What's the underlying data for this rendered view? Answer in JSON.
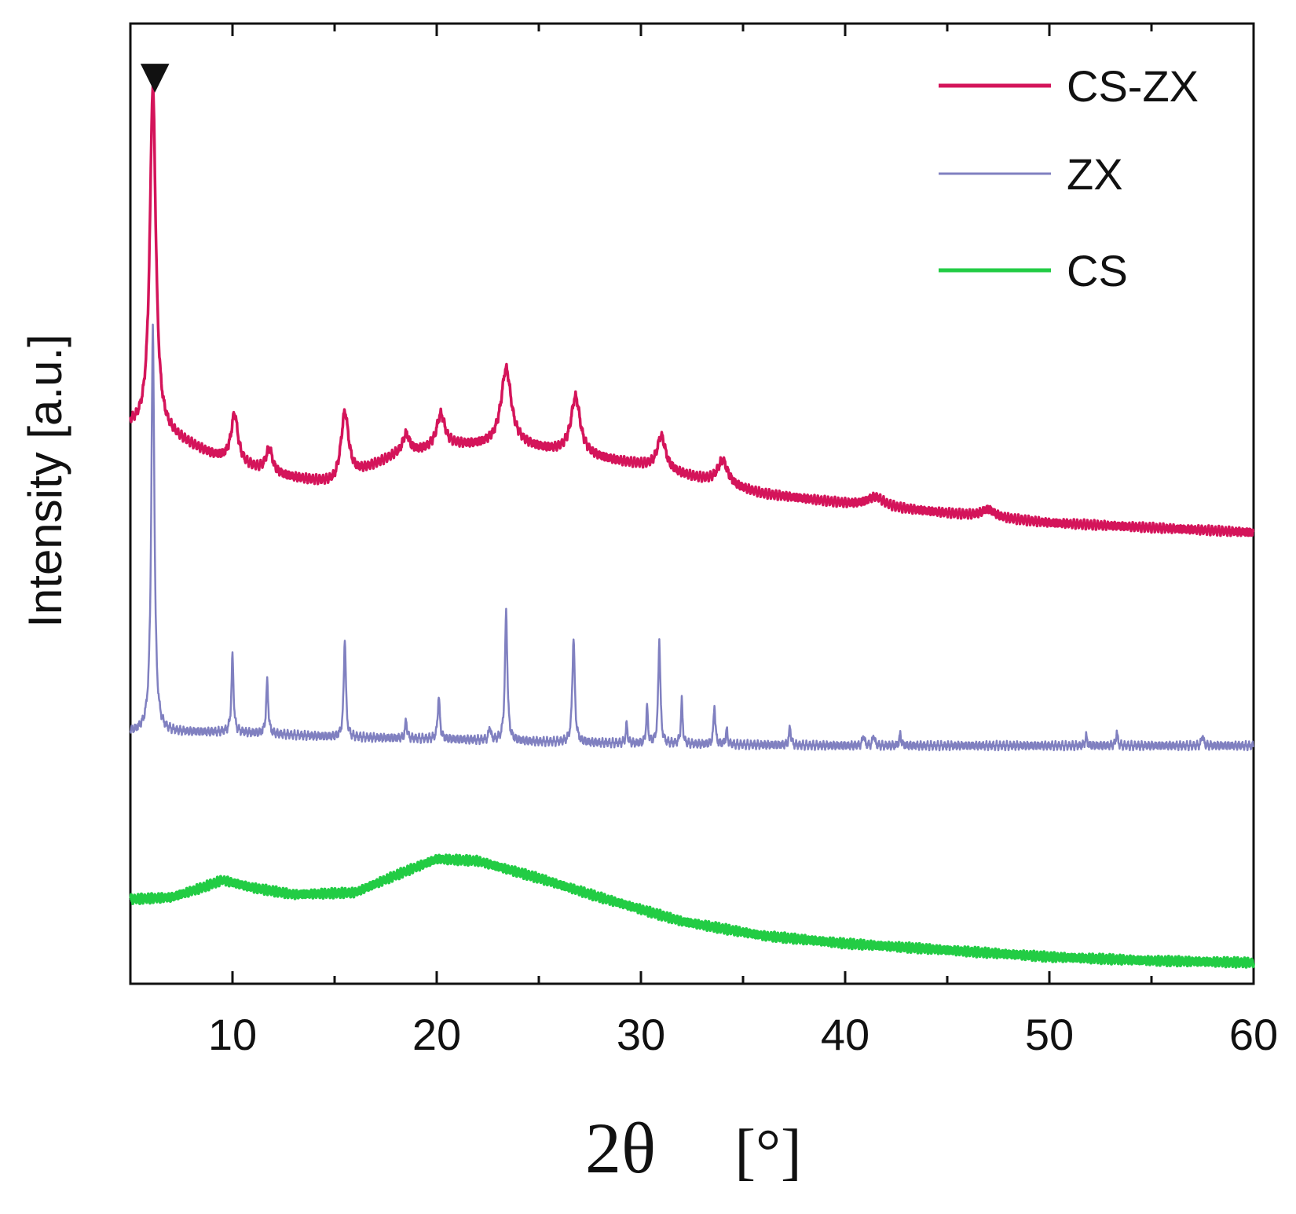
{
  "chart_data": {
    "type": "line",
    "title": "",
    "xlabel": "2θ",
    "xlabel_unit": "[°]",
    "ylabel": "Intensity [a.u.]",
    "xlim": [
      5,
      60
    ],
    "ylim": [
      0,
      1
    ],
    "x_ticks": [
      10,
      20,
      30,
      40,
      50,
      60
    ],
    "y_ticks": [],
    "grid": false,
    "legend_position": "top-right",
    "annotation": {
      "symbol": "▼",
      "x": 6.2,
      "description": "marker above main reflection"
    },
    "series": [
      {
        "name": "CS-ZX",
        "color": "#d4145a",
        "baseline": [
          [
            5,
            0.58
          ],
          [
            7,
            0.57
          ],
          [
            9,
            0.55
          ],
          [
            12,
            0.53
          ],
          [
            15,
            0.52
          ],
          [
            18,
            0.55
          ],
          [
            21,
            0.56
          ],
          [
            24,
            0.56
          ],
          [
            27,
            0.55
          ],
          [
            30,
            0.54
          ],
          [
            32,
            0.53
          ],
          [
            34,
            0.52
          ],
          [
            36,
            0.51
          ],
          [
            40,
            0.5
          ],
          [
            45,
            0.49
          ],
          [
            50,
            0.48
          ],
          [
            55,
            0.475
          ],
          [
            60,
            0.47
          ]
        ],
        "peaks": [
          {
            "x": 6.1,
            "height": 0.36,
            "width": 0.35
          },
          {
            "x": 10.1,
            "height": 0.05,
            "width": 0.4
          },
          {
            "x": 11.8,
            "height": 0.025,
            "width": 0.4
          },
          {
            "x": 15.5,
            "height": 0.07,
            "width": 0.45
          },
          {
            "x": 18.5,
            "height": 0.02,
            "width": 0.4
          },
          {
            "x": 20.2,
            "height": 0.035,
            "width": 0.5
          },
          {
            "x": 23.4,
            "height": 0.08,
            "width": 0.6
          },
          {
            "x": 26.8,
            "height": 0.06,
            "width": 0.55
          },
          {
            "x": 31.0,
            "height": 0.035,
            "width": 0.5
          },
          {
            "x": 34.0,
            "height": 0.025,
            "width": 0.6
          },
          {
            "x": 41.5,
            "height": 0.01,
            "width": 1.0
          },
          {
            "x": 47.0,
            "height": 0.008,
            "width": 0.8
          }
        ]
      },
      {
        "name": "ZX",
        "color": "#8080c0",
        "baseline": [
          [
            5,
            0.262
          ],
          [
            10,
            0.262
          ],
          [
            15,
            0.257
          ],
          [
            20,
            0.255
          ],
          [
            25,
            0.252
          ],
          [
            30,
            0.25
          ],
          [
            40,
            0.248
          ],
          [
            50,
            0.248
          ],
          [
            60,
            0.248
          ]
        ],
        "peaks": [
          {
            "x": 6.1,
            "height": 0.42,
            "width": 0.18
          },
          {
            "x": 10.0,
            "height": 0.08,
            "width": 0.12
          },
          {
            "x": 11.7,
            "height": 0.055,
            "width": 0.12
          },
          {
            "x": 15.5,
            "height": 0.105,
            "width": 0.12
          },
          {
            "x": 18.5,
            "height": 0.02,
            "width": 0.1
          },
          {
            "x": 20.1,
            "height": 0.045,
            "width": 0.12
          },
          {
            "x": 22.6,
            "height": 0.015,
            "width": 0.1
          },
          {
            "x": 23.4,
            "height": 0.135,
            "width": 0.14
          },
          {
            "x": 26.7,
            "height": 0.11,
            "width": 0.14
          },
          {
            "x": 29.3,
            "height": 0.02,
            "width": 0.1
          },
          {
            "x": 30.3,
            "height": 0.038,
            "width": 0.1
          },
          {
            "x": 30.9,
            "height": 0.11,
            "width": 0.12
          },
          {
            "x": 32.0,
            "height": 0.045,
            "width": 0.1
          },
          {
            "x": 33.6,
            "height": 0.042,
            "width": 0.1
          },
          {
            "x": 34.2,
            "height": 0.015,
            "width": 0.1
          },
          {
            "x": 37.3,
            "height": 0.02,
            "width": 0.1
          },
          {
            "x": 40.9,
            "height": 0.012,
            "width": 0.1
          },
          {
            "x": 41.4,
            "height": 0.012,
            "width": 0.1
          },
          {
            "x": 42.7,
            "height": 0.012,
            "width": 0.1
          },
          {
            "x": 51.8,
            "height": 0.01,
            "width": 0.1
          },
          {
            "x": 53.3,
            "height": 0.014,
            "width": 0.1
          },
          {
            "x": 57.5,
            "height": 0.012,
            "width": 0.1
          }
        ]
      },
      {
        "name": "CS",
        "color": "#22cc44",
        "baseline": [
          [
            5,
            0.088
          ],
          [
            7,
            0.09
          ],
          [
            8.5,
            0.1
          ],
          [
            9.5,
            0.108
          ],
          [
            11,
            0.1
          ],
          [
            13,
            0.093
          ],
          [
            16,
            0.095
          ],
          [
            18,
            0.113
          ],
          [
            20,
            0.13
          ],
          [
            22,
            0.128
          ],
          [
            25,
            0.11
          ],
          [
            28,
            0.09
          ],
          [
            32,
            0.065
          ],
          [
            36,
            0.05
          ],
          [
            40,
            0.042
          ],
          [
            45,
            0.035
          ],
          [
            50,
            0.028
          ],
          [
            55,
            0.024
          ],
          [
            60,
            0.022
          ]
        ],
        "peaks": []
      }
    ]
  }
}
